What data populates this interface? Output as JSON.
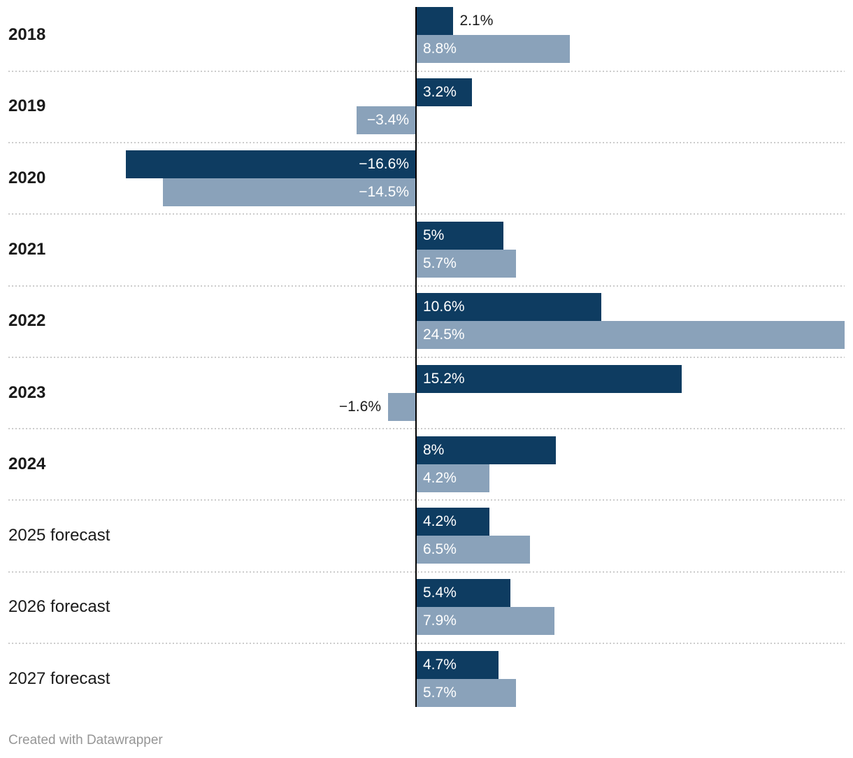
{
  "chart_data": {
    "type": "bar",
    "orientation": "horizontal",
    "title": "",
    "categories": [
      "2018",
      "2019",
      "2020",
      "2021",
      "2022",
      "2023",
      "2024",
      "2025 forecast",
      "2026 forecast",
      "2027 forecast"
    ],
    "category_bold": [
      true,
      true,
      true,
      true,
      true,
      true,
      true,
      false,
      false,
      false
    ],
    "series": [
      {
        "name": "series-1-dark-blue",
        "color": "#0e3c61",
        "values": [
          2.1,
          3.2,
          -16.6,
          5,
          10.6,
          15.2,
          8,
          4.2,
          5.4,
          4.7
        ],
        "labels": [
          "2.1%",
          "3.2%",
          "−16.6%",
          "5%",
          "10.6%",
          "15.2%",
          "8%",
          "4.2%",
          "5.4%",
          "4.7%"
        ]
      },
      {
        "name": "series-2-steel-blue",
        "color": "#8aa2ba",
        "values": [
          8.8,
          -3.4,
          -14.5,
          5.7,
          24.5,
          -1.6,
          4.2,
          6.5,
          7.9,
          5.7
        ],
        "labels": [
          "8.8%",
          "−3.4%",
          "−14.5%",
          "5.7%",
          "24.5%",
          "−1.6%",
          "4.2%",
          "6.5%",
          "7.9%",
          "5.7%"
        ]
      }
    ],
    "xlim": [
      -16.6,
      24.5
    ],
    "baseline": 0,
    "value_suffix": "%",
    "legend": "none",
    "grid": "dotted-row-separators"
  },
  "footer": {
    "credit": "Created with Datawrapper"
  },
  "colors": {
    "bar_dark": "#0e3c61",
    "bar_light": "#8aa2ba",
    "label_inside": "#ffffff",
    "label_outside": "#1a1a1a",
    "separator": "#cccccc",
    "axis": "#000000",
    "category_text": "#1a1a1a",
    "credit_text": "#969696",
    "background": "#ffffff"
  }
}
